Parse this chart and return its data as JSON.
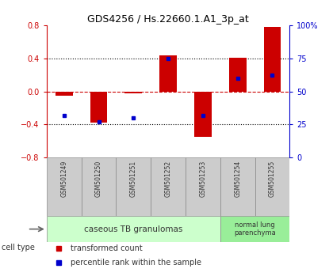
{
  "title": "GDS4256 / Hs.22660.1.A1_3p_at",
  "samples": [
    "GSM501249",
    "GSM501250",
    "GSM501251",
    "GSM501252",
    "GSM501253",
    "GSM501254",
    "GSM501255"
  ],
  "transformed_count": [
    -0.05,
    -0.38,
    -0.02,
    0.44,
    -0.55,
    0.41,
    0.78
  ],
  "percentile_rank": [
    32,
    27,
    30,
    75,
    32,
    60,
    62
  ],
  "ylim_left": [
    -0.8,
    0.8
  ],
  "ylim_right": [
    0,
    100
  ],
  "yticks_left": [
    -0.8,
    -0.4,
    0,
    0.4,
    0.8
  ],
  "yticks_right": [
    0,
    25,
    50,
    75,
    100
  ],
  "ytick_labels_right": [
    "0",
    "25",
    "50",
    "75",
    "100%"
  ],
  "bar_color": "#cc0000",
  "square_color": "#0000cc",
  "dashed_line_color": "#cc0000",
  "dotted_line_color": "#000000",
  "group1_label": "caseous TB granulomas",
  "group2_label": "normal lung\nparenchyma",
  "group1_indices": [
    0,
    1,
    2,
    3,
    4
  ],
  "group2_indices": [
    5,
    6
  ],
  "cell_type_label": "cell type",
  "legend_bar_label": "transformed count",
  "legend_sq_label": "percentile rank within the sample",
  "group1_color": "#ccffcc",
  "group2_color": "#99ee99",
  "tick_color_left": "#cc0000",
  "tick_color_right": "#0000cc",
  "sample_box_color": "#cccccc",
  "sample_box_edge": "#888888",
  "bar_width": 0.5
}
